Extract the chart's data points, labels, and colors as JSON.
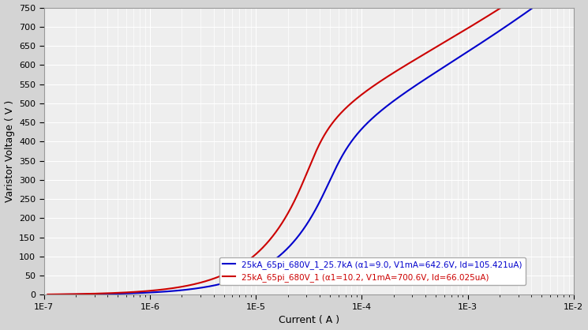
{
  "title": "",
  "xlabel": "Current ( A )",
  "ylabel": "Varistor Voltage ( V )",
  "xlim_log": [
    -7,
    -2
  ],
  "ylim": [
    0,
    750
  ],
  "yticks": [
    0,
    50,
    100,
    150,
    200,
    250,
    300,
    350,
    400,
    450,
    500,
    550,
    600,
    650,
    700,
    750
  ],
  "bg_color": "#d4d4d4",
  "plot_bg_color": "#eeeeee",
  "grid_color": "#ffffff",
  "blue_label": "25kA_65pi_680V_1_25.7kA (α1=9.0, V1mA=642.6V, Id=105.421uA)",
  "red_label": "25kA_65pi_680V_1 (α1=10.2, V1mA=700.6V, Id=66.025uA)",
  "blue_color": "#0000cc",
  "red_color": "#cc0000",
  "blue_alpha1": 9.0,
  "blue_V1mA": 642.6,
  "blue_Id": 0.000105421,
  "red_alpha1": 10.2,
  "red_V1mA": 700.6,
  "red_Id": 6.6025e-05
}
